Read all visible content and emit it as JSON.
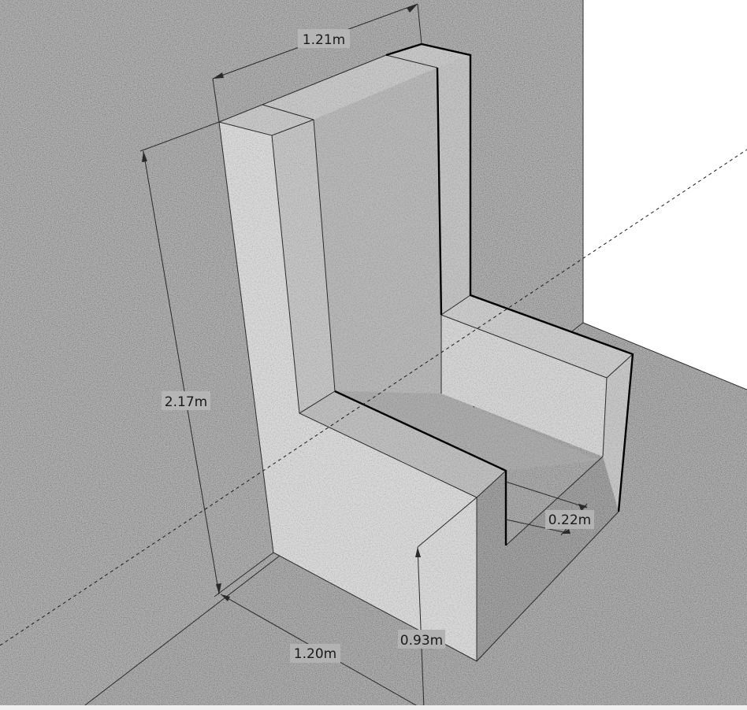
{
  "dimensions": {
    "width_top": "1.21m",
    "height_total": "2.17m",
    "width_bottom": "1.20m",
    "seat_height": "0.93m",
    "thickness": "0.22m"
  },
  "colors": {
    "wall": "#b4b4b4",
    "floor": "#b1b1b1",
    "background": "#ffffff",
    "concrete_light": "#d9d9d9",
    "concrete_mid": "#c2c2c2",
    "concrete_dark": "#a9a9a9"
  }
}
